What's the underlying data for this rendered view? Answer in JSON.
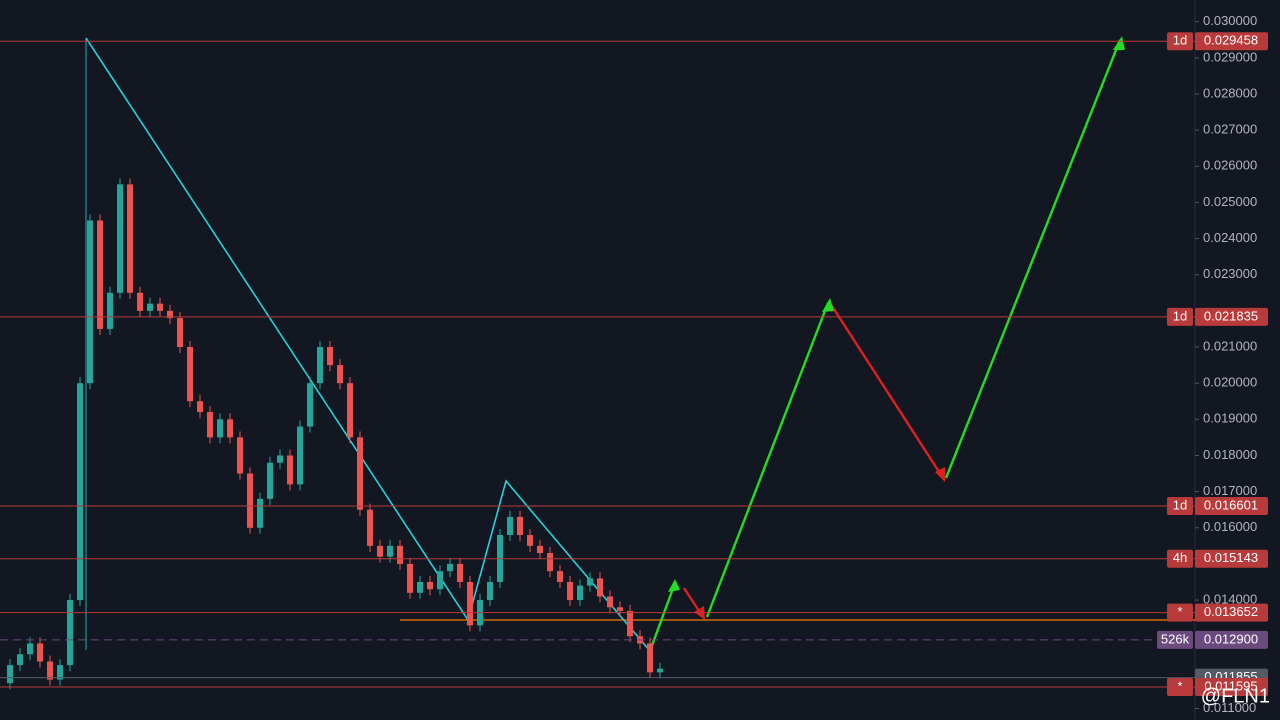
{
  "chart_data": {
    "type": "candlestick",
    "values": [
      0.0117,
      0.0122,
      0.0125,
      0.0128,
      0.0123,
      0.0118,
      0.0122,
      0.014,
      0.02,
      0.0245,
      0.0215,
      0.0225,
      0.0255,
      0.0225,
      0.022,
      0.0222,
      0.022,
      0.0218,
      0.021,
      0.0195,
      0.0192,
      0.0185,
      0.019,
      0.0185,
      0.0175,
      0.016,
      0.0168,
      0.0178,
      0.018,
      0.0172,
      0.0188,
      0.02,
      0.021,
      0.0205,
      0.02,
      0.0185,
      0.0165,
      0.0155,
      0.0152,
      0.0155,
      0.015,
      0.0142,
      0.0145,
      0.0143,
      0.0148,
      0.015,
      0.0145,
      0.0133,
      0.014,
      0.0145,
      0.0158,
      0.0163,
      0.0158,
      0.0155,
      0.0153,
      0.0148,
      0.0145,
      0.014,
      0.0144,
      0.0146,
      0.0141,
      0.0138,
      0.0137,
      0.013,
      0.0128,
      0.012,
      0.0121
    ],
    "up_color": "#26a69a",
    "down_color": "#ef5350",
    "ylim": [
      0.01082,
      0.0306
    ],
    "yticks": [
      {
        "value": 0.03,
        "label": "0.030000"
      },
      {
        "value": 0.029,
        "label": "0.029000"
      },
      {
        "value": 0.028,
        "label": "0.028000"
      },
      {
        "value": 0.027,
        "label": "0.027000"
      },
      {
        "value": 0.026,
        "label": "0.026000"
      },
      {
        "value": 0.025,
        "label": "0.025000"
      },
      {
        "value": 0.024,
        "label": "0.024000"
      },
      {
        "value": 0.023,
        "label": "0.023000"
      },
      {
        "value": 0.021,
        "label": "0.021000"
      },
      {
        "value": 0.02,
        "label": "0.020000"
      },
      {
        "value": 0.019,
        "label": "0.019000"
      },
      {
        "value": 0.018,
        "label": "0.018000"
      },
      {
        "value": 0.017,
        "label": "0.017000"
      },
      {
        "value": 0.016,
        "label": "0.016000"
      },
      {
        "value": 0.014,
        "label": "0.014000"
      },
      {
        "value": 0.011,
        "label": "0.011000"
      }
    ],
    "levels": [
      {
        "value": 0.029458,
        "label": "0.029458",
        "tag": "1d",
        "color": "#b83a3a"
      },
      {
        "value": 0.021835,
        "label": "0.021835",
        "tag": "1d",
        "color": "#b83a3a"
      },
      {
        "value": 0.016601,
        "label": "0.016601",
        "tag": "1d",
        "color": "#b83a3a"
      },
      {
        "value": 0.015143,
        "label": "0.015143",
        "tag": "4h",
        "color": "#b83a3a"
      },
      {
        "value": 0.013652,
        "label": "0.013652",
        "tag": "*",
        "color": "#b83a3a"
      },
      {
        "value": 0.0129,
        "label": "0.012900",
        "tag": "526k",
        "color": "#6b4a7e"
      },
      {
        "value": 0.011855,
        "label": "0.011855",
        "color": "#555a66"
      },
      {
        "value": 0.011595,
        "label": "0.011595",
        "tag": "*",
        "color": "#b83a3a"
      }
    ],
    "watermark": "@FLN1"
  }
}
